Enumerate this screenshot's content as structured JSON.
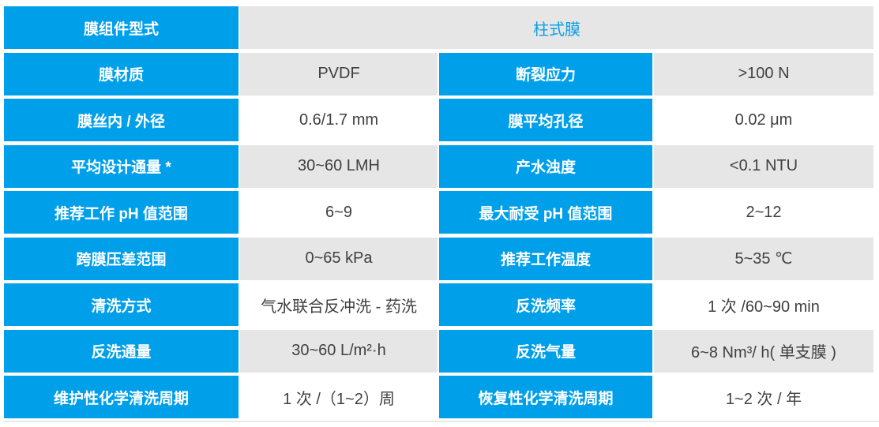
{
  "table": {
    "header": {
      "label": "膜组件型式",
      "value": "柱式膜"
    },
    "rows": [
      {
        "left_label": "膜材质",
        "left_value": "PVDF",
        "right_label": "断裂应力",
        "right_value": ">100 N"
      },
      {
        "left_label": "膜丝内 / 外径",
        "left_value": "0.6/1.7 mm",
        "right_label": "膜平均孔径",
        "right_value": "0.02 μm"
      },
      {
        "left_label": "平均设计通量 *",
        "left_value": "30~60 LMH",
        "right_label": "产水浊度",
        "right_value": "<0.1 NTU"
      },
      {
        "left_label": "推荐工作 pH 值范围",
        "left_value": "6~9",
        "right_label": "最大耐受 pH 值范围",
        "right_value": "2~12"
      },
      {
        "left_label": "跨膜压差范围",
        "left_value": "0~65 kPa",
        "right_label": "推荐工作温度",
        "right_value": "5~35 ℃"
      },
      {
        "left_label": "清洗方式",
        "left_value": "气水联合反冲洗 - 药洗",
        "right_label": "反洗频率",
        "right_value": "1 次 /60~90 min"
      },
      {
        "left_label": "反洗通量",
        "left_value": "30~60 L/m²·h",
        "right_label": "反洗气量",
        "right_value": "6~8 Nm³/ h( 单支膜 )"
      },
      {
        "left_label": "维护性化学清洗周期",
        "left_value": "1 次 /（1~2）周",
        "right_label": "恢复性化学清洗周期",
        "right_value": "1~2 次 / 年"
      }
    ],
    "colors": {
      "accent_blue": "#009FE9",
      "header_text_blue": "#0C9FE8",
      "row_gray": "#E6E6E6",
      "value_text": "#404040",
      "label_text": "#FFFFFF"
    }
  }
}
